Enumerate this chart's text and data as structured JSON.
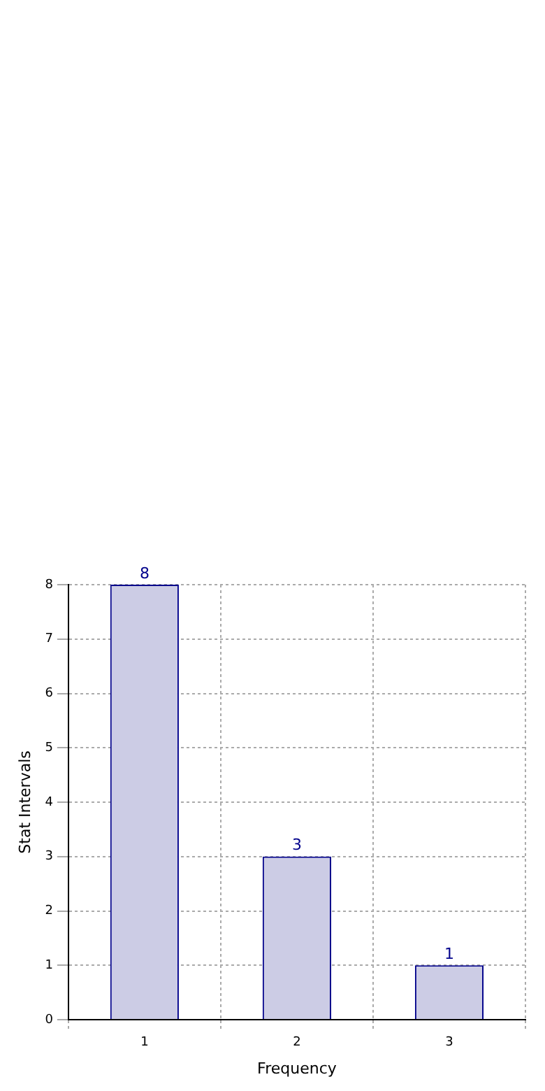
{
  "chart_data": {
    "type": "bar",
    "xlabel": "Frequency",
    "ylabel": "Stat Intervals",
    "categories": [
      "1",
      "2",
      "3"
    ],
    "values": [
      8,
      3,
      1
    ],
    "color": "#ccccE5",
    "ylim": [
      0,
      8
    ],
    "yticks": [
      0,
      1,
      2,
      3,
      4,
      5,
      6,
      7,
      8
    ],
    "grid": true,
    "data_labels": true
  }
}
